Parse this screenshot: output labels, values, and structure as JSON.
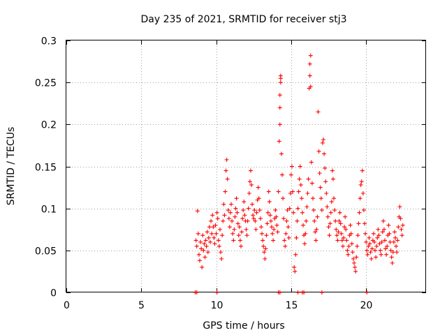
{
  "chart_data": {
    "type": "scatter",
    "title": "Day 235 of 2021, SRMTID for receiver stj3",
    "xlabel": "GPS time / hours",
    "ylabel": "SRMTID / TECUs",
    "xlim": [
      0,
      24
    ],
    "ylim": [
      0,
      0.3
    ],
    "xticks": [
      0,
      5,
      10,
      15,
      20
    ],
    "xtick_labels": [
      "0",
      "5",
      "10",
      "15",
      "20"
    ],
    "yticks": [
      0,
      0.05,
      0.1,
      0.15,
      0.2,
      0.25,
      0.3
    ],
    "ytick_labels": [
      "0",
      "0.05",
      "0.1",
      "0.15",
      "0.2",
      "0.25",
      "0.3"
    ],
    "grid": true,
    "marker": "plus",
    "color": "#ff0000",
    "series": [
      {
        "name": "SRMTID",
        "points": [
          [
            8.6,
            0.0
          ],
          [
            8.7,
            0.0
          ],
          [
            10.05,
            0.0
          ],
          [
            14.15,
            0.0
          ],
          [
            14.25,
            0.0
          ],
          [
            15.45,
            0.0
          ],
          [
            15.75,
            0.0
          ],
          [
            15.85,
            0.0
          ],
          [
            17.05,
            0.0
          ],
          [
            20.05,
            0.0
          ],
          [
            8.65,
            0.062
          ],
          [
            8.7,
            0.055
          ],
          [
            8.75,
            0.097
          ],
          [
            8.8,
            0.07
          ],
          [
            8.85,
            0.045
          ],
          [
            8.9,
            0.038
          ],
          [
            8.95,
            0.06
          ],
          [
            9.0,
            0.052
          ],
          [
            9.05,
            0.03
          ],
          [
            9.1,
            0.068
          ],
          [
            9.15,
            0.05
          ],
          [
            9.2,
            0.058
          ],
          [
            9.25,
            0.042
          ],
          [
            9.3,
            0.062
          ],
          [
            9.35,
            0.055
          ],
          [
            9.4,
            0.072
          ],
          [
            9.45,
            0.048
          ],
          [
            9.5,
            0.065
          ],
          [
            9.55,
            0.078
          ],
          [
            9.6,
            0.06
          ],
          [
            9.65,
            0.085
          ],
          [
            9.7,
            0.07
          ],
          [
            9.75,
            0.092
          ],
          [
            9.8,
            0.078
          ],
          [
            9.85,
            0.065
          ],
          [
            9.9,
            0.058
          ],
          [
            9.95,
            0.08
          ],
          [
            10.0,
            0.07
          ],
          [
            10.05,
            0.095
          ],
          [
            10.1,
            0.088
          ],
          [
            10.15,
            0.062
          ],
          [
            10.2,
            0.055
          ],
          [
            10.25,
            0.075
          ],
          [
            10.3,
            0.048
          ],
          [
            10.35,
            0.04
          ],
          [
            10.4,
            0.068
          ],
          [
            10.45,
            0.085
          ],
          [
            10.5,
            0.105
          ],
          [
            10.55,
            0.092
          ],
          [
            10.6,
            0.12
          ],
          [
            10.65,
            0.145
          ],
          [
            10.7,
            0.158
          ],
          [
            10.75,
            0.135
          ],
          [
            10.8,
            0.098
          ],
          [
            10.85,
            0.088
          ],
          [
            10.9,
            0.078
          ],
          [
            10.95,
            0.095
          ],
          [
            11.0,
            0.105
          ],
          [
            11.05,
            0.085
          ],
          [
            11.1,
            0.07
          ],
          [
            11.15,
            0.062
          ],
          [
            11.2,
            0.075
          ],
          [
            11.25,
            0.09
          ],
          [
            11.3,
            0.1
          ],
          [
            11.35,
            0.112
          ],
          [
            11.4,
            0.095
          ],
          [
            11.45,
            0.082
          ],
          [
            11.5,
            0.068
          ],
          [
            11.55,
            0.078
          ],
          [
            11.6,
            0.062
          ],
          [
            11.65,
            0.055
          ],
          [
            11.7,
            0.072
          ],
          [
            11.75,
            0.088
          ],
          [
            11.8,
            0.098
          ],
          [
            11.85,
            0.108
          ],
          [
            11.9,
            0.092
          ],
          [
            11.95,
            0.085
          ],
          [
            12.0,
            0.075
          ],
          [
            12.05,
            0.068
          ],
          [
            12.1,
            0.085
          ],
          [
            12.15,
            0.1
          ],
          [
            12.2,
            0.118
          ],
          [
            12.25,
            0.132
          ],
          [
            12.3,
            0.145
          ],
          [
            12.35,
            0.128
          ],
          [
            12.4,
            0.105
          ],
          [
            12.45,
            0.092
          ],
          [
            12.5,
            0.088
          ],
          [
            12.55,
            0.098
          ],
          [
            12.6,
            0.085
          ],
          [
            12.65,
            0.075
          ],
          [
            12.7,
            0.095
          ],
          [
            12.75,
            0.11
          ],
          [
            12.8,
            0.125
          ],
          [
            12.85,
            0.112
          ],
          [
            12.9,
            0.098
          ],
          [
            12.95,
            0.088
          ],
          [
            13.0,
            0.078
          ],
          [
            13.05,
            0.07
          ],
          [
            13.1,
            0.062
          ],
          [
            13.15,
            0.055
          ],
          [
            13.2,
            0.048
          ],
          [
            13.25,
            0.04
          ],
          [
            13.3,
            0.052
          ],
          [
            13.35,
            0.068
          ],
          [
            13.4,
            0.082
          ],
          [
            13.45,
            0.095
          ],
          [
            13.5,
            0.12
          ],
          [
            13.55,
            0.108
          ],
          [
            13.6,
            0.092
          ],
          [
            13.65,
            0.085
          ],
          [
            13.7,
            0.078
          ],
          [
            13.75,
            0.07
          ],
          [
            13.8,
            0.062
          ],
          [
            13.85,
            0.075
          ],
          [
            13.9,
            0.088
          ],
          [
            13.95,
            0.098
          ],
          [
            14.0,
            0.09
          ],
          [
            14.05,
            0.08
          ],
          [
            14.1,
            0.072
          ],
          [
            14.15,
            0.12
          ],
          [
            14.2,
            0.18
          ],
          [
            14.25,
            0.2
          ],
          [
            14.25,
            0.22
          ],
          [
            14.25,
            0.235
          ],
          [
            14.3,
            0.25
          ],
          [
            14.3,
            0.255
          ],
          [
            14.3,
            0.258
          ],
          [
            14.35,
            0.165
          ],
          [
            14.4,
            0.14
          ],
          [
            14.45,
            0.112
          ],
          [
            14.5,
            0.088
          ],
          [
            14.55,
            0.062
          ],
          [
            14.6,
            0.055
          ],
          [
            14.65,
            0.07
          ],
          [
            14.7,
            0.085
          ],
          [
            14.75,
            0.098
          ],
          [
            14.8,
            0.078
          ],
          [
            14.85,
            0.065
          ],
          [
            14.9,
            0.1
          ],
          [
            14.95,
            0.118
          ],
          [
            15.0,
            0.14
          ],
          [
            15.05,
            0.15
          ],
          [
            15.1,
            0.12
          ],
          [
            15.15,
            0.095
          ],
          [
            15.2,
            0.03
          ],
          [
            15.25,
            0.025
          ],
          [
            15.3,
            0.045
          ],
          [
            15.35,
            0.065
          ],
          [
            15.4,
            0.085
          ],
          [
            15.45,
            0.1
          ],
          [
            15.5,
            0.12
          ],
          [
            15.55,
            0.135
          ],
          [
            15.6,
            0.15
          ],
          [
            15.65,
            0.128
          ],
          [
            15.7,
            0.112
          ],
          [
            15.75,
            0.095
          ],
          [
            15.8,
            0.08
          ],
          [
            15.85,
            0.068
          ],
          [
            15.9,
            0.058
          ],
          [
            15.95,
            0.07
          ],
          [
            16.0,
            0.085
          ],
          [
            16.05,
            0.102
          ],
          [
            16.1,
            0.118
          ],
          [
            16.15,
            0.135
          ],
          [
            16.2,
            0.243
          ],
          [
            16.25,
            0.258
          ],
          [
            16.25,
            0.272
          ],
          [
            16.3,
            0.282
          ],
          [
            16.3,
            0.245
          ],
          [
            16.35,
            0.155
          ],
          [
            16.4,
            0.13
          ],
          [
            16.45,
            0.112
          ],
          [
            16.5,
            0.098
          ],
          [
            16.55,
            0.085
          ],
          [
            16.6,
            0.072
          ],
          [
            16.65,
            0.062
          ],
          [
            16.7,
            0.075
          ],
          [
            16.75,
            0.09
          ],
          [
            16.8,
            0.215
          ],
          [
            16.85,
            0.168
          ],
          [
            16.9,
            0.142
          ],
          [
            16.95,
            0.125
          ],
          [
            17.0,
            0.112
          ],
          [
            17.05,
            0.098
          ],
          [
            17.1,
            0.178
          ],
          [
            17.15,
            0.182
          ],
          [
            17.2,
            0.165
          ],
          [
            17.25,
            0.148
          ],
          [
            17.3,
            0.132
          ],
          [
            17.35,
            0.118
          ],
          [
            17.4,
            0.102
          ],
          [
            17.45,
            0.09
          ],
          [
            17.5,
            0.078
          ],
          [
            17.55,
            0.068
          ],
          [
            17.6,
            0.082
          ],
          [
            17.65,
            0.095
          ],
          [
            17.7,
            0.108
          ],
          [
            17.75,
            0.145
          ],
          [
            17.8,
            0.135
          ],
          [
            17.85,
            0.112
          ],
          [
            17.9,
            0.098
          ],
          [
            17.95,
            0.085
          ],
          [
            18.0,
            0.075
          ],
          [
            18.05,
            0.068
          ],
          [
            18.1,
            0.062
          ],
          [
            18.15,
            0.072
          ],
          [
            18.2,
            0.085
          ],
          [
            18.25,
            0.095
          ],
          [
            18.3,
            0.082
          ],
          [
            18.35,
            0.07
          ],
          [
            18.4,
            0.062
          ],
          [
            18.45,
            0.055
          ],
          [
            18.5,
            0.065
          ],
          [
            18.55,
            0.078
          ],
          [
            18.6,
            0.09
          ],
          [
            18.65,
            0.075
          ],
          [
            18.7,
            0.062
          ],
          [
            18.75,
            0.05
          ],
          [
            18.8,
            0.045
          ],
          [
            18.85,
            0.055
          ],
          [
            18.9,
            0.068
          ],
          [
            18.95,
            0.08
          ],
          [
            19.0,
            0.07
          ],
          [
            19.05,
            0.058
          ],
          [
            19.1,
            0.048
          ],
          [
            19.15,
            0.04
          ],
          [
            19.2,
            0.035
          ],
          [
            19.25,
            0.03
          ],
          [
            19.3,
            0.025
          ],
          [
            19.35,
            0.042
          ],
          [
            19.4,
            0.055
          ],
          [
            19.45,
            0.068
          ],
          [
            19.5,
            0.082
          ],
          [
            19.55,
            0.095
          ],
          [
            19.6,
            0.112
          ],
          [
            19.65,
            0.128
          ],
          [
            19.7,
            0.132
          ],
          [
            19.75,
            0.145
          ],
          [
            19.8,
            0.118
          ],
          [
            19.85,
            0.098
          ],
          [
            19.9,
            0.082
          ],
          [
            19.95,
            0.07
          ],
          [
            20.0,
            0.06
          ],
          [
            20.05,
            0.05
          ],
          [
            20.1,
            0.045
          ],
          [
            20.15,
            0.055
          ],
          [
            20.2,
            0.065
          ],
          [
            20.25,
            0.058
          ],
          [
            20.3,
            0.048
          ],
          [
            20.35,
            0.04
          ],
          [
            20.4,
            0.052
          ],
          [
            20.45,
            0.062
          ],
          [
            20.5,
            0.07
          ],
          [
            20.55,
            0.06
          ],
          [
            20.6,
            0.05
          ],
          [
            20.65,
            0.042
          ],
          [
            20.7,
            0.055
          ],
          [
            20.75,
            0.065
          ],
          [
            20.8,
            0.075
          ],
          [
            20.85,
            0.068
          ],
          [
            20.9,
            0.058
          ],
          [
            20.95,
            0.05
          ],
          [
            21.0,
            0.045
          ],
          [
            21.05,
            0.06
          ],
          [
            21.1,
            0.072
          ],
          [
            21.15,
            0.085
          ],
          [
            21.2,
            0.075
          ],
          [
            21.25,
            0.062
          ],
          [
            21.3,
            0.052
          ],
          [
            21.35,
            0.045
          ],
          [
            21.4,
            0.055
          ],
          [
            21.45,
            0.068
          ],
          [
            21.5,
            0.08
          ],
          [
            21.55,
            0.07
          ],
          [
            21.6,
            0.06
          ],
          [
            21.65,
            0.05
          ],
          [
            21.7,
            0.042
          ],
          [
            21.75,
            0.035
          ],
          [
            21.8,
            0.048
          ],
          [
            21.85,
            0.06
          ],
          [
            21.9,
            0.072
          ],
          [
            21.95,
            0.065
          ],
          [
            22.0,
            0.055
          ],
          [
            22.05,
            0.048
          ],
          [
            22.1,
            0.062
          ],
          [
            22.15,
            0.078
          ],
          [
            22.2,
            0.09
          ],
          [
            22.25,
            0.102
          ],
          [
            22.3,
            0.088
          ],
          [
            22.35,
            0.075
          ],
          [
            22.4,
            0.068
          ],
          [
            22.45,
            0.08
          ]
        ]
      }
    ]
  }
}
